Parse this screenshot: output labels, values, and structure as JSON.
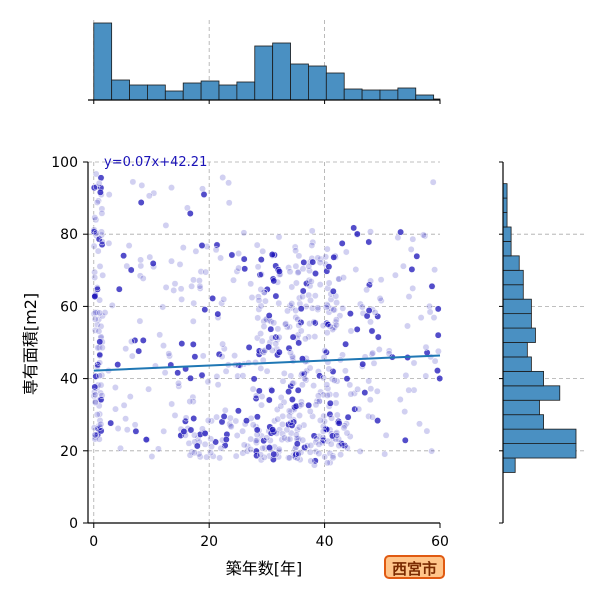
{
  "badge": {
    "city": "西宮市"
  },
  "chart_data": {
    "type": "scatter",
    "xlabel": "築年数[年]",
    "ylabel": "専有面積[m2]",
    "xlim": [
      -1,
      60
    ],
    "ylim": [
      0,
      100
    ],
    "x_ticks": [
      0,
      20,
      40,
      60
    ],
    "y_ticks": [
      0,
      20,
      40,
      60,
      80,
      100
    ],
    "grid": true,
    "point_color": "#1a12b8",
    "line_color": "#1f77b4",
    "hist_color": "#4a90c2",
    "regression": {
      "label": "y=0.07x+42.21",
      "slope": 0.07,
      "intercept": 42.21,
      "label_color": "#1a12b8"
    },
    "x_hist": {
      "bin_width": 3.1,
      "bin_start": 0,
      "density": [
        77,
        20,
        15,
        15,
        9,
        17,
        19,
        15,
        18,
        54,
        57,
        36,
        34,
        27,
        11,
        10,
        10,
        12,
        5,
        1
      ]
    },
    "y_hist": {
      "bin_width": 4,
      "bin_start": 14,
      "density": [
        3,
        18,
        18,
        10,
        9,
        14,
        10,
        7,
        6,
        8,
        7,
        7,
        5,
        5,
        4,
        2,
        2,
        1,
        1,
        1,
        0
      ]
    }
  }
}
